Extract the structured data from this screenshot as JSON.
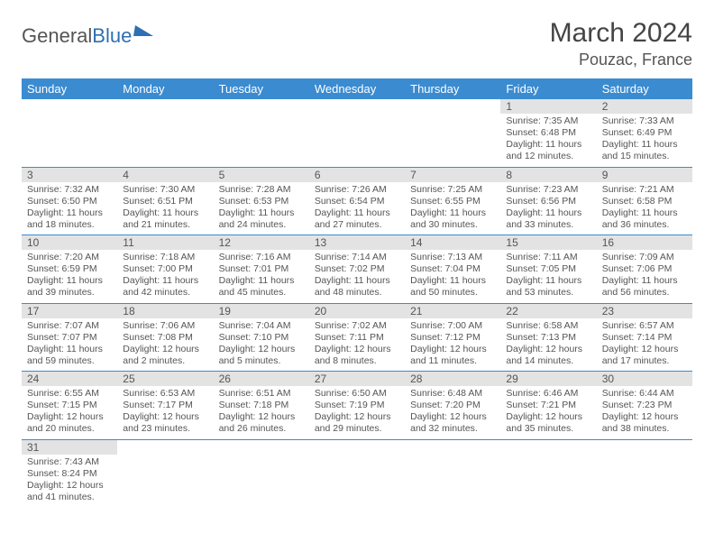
{
  "logo": {
    "word1": "General",
    "word2": "Blue"
  },
  "title": "March 2024",
  "location": "Pouzac, France",
  "colors": {
    "header_bg": "#3b8bd0",
    "header_text": "#ffffff",
    "daynum_bg": "#e3e3e3",
    "text": "#555555",
    "rule": "#3b8bd0",
    "logo_accent": "#2f6fb3"
  },
  "dow": [
    "Sunday",
    "Monday",
    "Tuesday",
    "Wednesday",
    "Thursday",
    "Friday",
    "Saturday"
  ],
  "weeks": [
    [
      null,
      null,
      null,
      null,
      null,
      {
        "n": "1",
        "sr": "7:35 AM",
        "ss": "6:48 PM",
        "dl": "11 hours and 12 minutes."
      },
      {
        "n": "2",
        "sr": "7:33 AM",
        "ss": "6:49 PM",
        "dl": "11 hours and 15 minutes."
      }
    ],
    [
      {
        "n": "3",
        "sr": "7:32 AM",
        "ss": "6:50 PM",
        "dl": "11 hours and 18 minutes."
      },
      {
        "n": "4",
        "sr": "7:30 AM",
        "ss": "6:51 PM",
        "dl": "11 hours and 21 minutes."
      },
      {
        "n": "5",
        "sr": "7:28 AM",
        "ss": "6:53 PM",
        "dl": "11 hours and 24 minutes."
      },
      {
        "n": "6",
        "sr": "7:26 AM",
        "ss": "6:54 PM",
        "dl": "11 hours and 27 minutes."
      },
      {
        "n": "7",
        "sr": "7:25 AM",
        "ss": "6:55 PM",
        "dl": "11 hours and 30 minutes."
      },
      {
        "n": "8",
        "sr": "7:23 AM",
        "ss": "6:56 PM",
        "dl": "11 hours and 33 minutes."
      },
      {
        "n": "9",
        "sr": "7:21 AM",
        "ss": "6:58 PM",
        "dl": "11 hours and 36 minutes."
      }
    ],
    [
      {
        "n": "10",
        "sr": "7:20 AM",
        "ss": "6:59 PM",
        "dl": "11 hours and 39 minutes."
      },
      {
        "n": "11",
        "sr": "7:18 AM",
        "ss": "7:00 PM",
        "dl": "11 hours and 42 minutes."
      },
      {
        "n": "12",
        "sr": "7:16 AM",
        "ss": "7:01 PM",
        "dl": "11 hours and 45 minutes."
      },
      {
        "n": "13",
        "sr": "7:14 AM",
        "ss": "7:02 PM",
        "dl": "11 hours and 48 minutes."
      },
      {
        "n": "14",
        "sr": "7:13 AM",
        "ss": "7:04 PM",
        "dl": "11 hours and 50 minutes."
      },
      {
        "n": "15",
        "sr": "7:11 AM",
        "ss": "7:05 PM",
        "dl": "11 hours and 53 minutes."
      },
      {
        "n": "16",
        "sr": "7:09 AM",
        "ss": "7:06 PM",
        "dl": "11 hours and 56 minutes."
      }
    ],
    [
      {
        "n": "17",
        "sr": "7:07 AM",
        "ss": "7:07 PM",
        "dl": "11 hours and 59 minutes."
      },
      {
        "n": "18",
        "sr": "7:06 AM",
        "ss": "7:08 PM",
        "dl": "12 hours and 2 minutes."
      },
      {
        "n": "19",
        "sr": "7:04 AM",
        "ss": "7:10 PM",
        "dl": "12 hours and 5 minutes."
      },
      {
        "n": "20",
        "sr": "7:02 AM",
        "ss": "7:11 PM",
        "dl": "12 hours and 8 minutes."
      },
      {
        "n": "21",
        "sr": "7:00 AM",
        "ss": "7:12 PM",
        "dl": "12 hours and 11 minutes."
      },
      {
        "n": "22",
        "sr": "6:58 AM",
        "ss": "7:13 PM",
        "dl": "12 hours and 14 minutes."
      },
      {
        "n": "23",
        "sr": "6:57 AM",
        "ss": "7:14 PM",
        "dl": "12 hours and 17 minutes."
      }
    ],
    [
      {
        "n": "24",
        "sr": "6:55 AM",
        "ss": "7:15 PM",
        "dl": "12 hours and 20 minutes."
      },
      {
        "n": "25",
        "sr": "6:53 AM",
        "ss": "7:17 PM",
        "dl": "12 hours and 23 minutes."
      },
      {
        "n": "26",
        "sr": "6:51 AM",
        "ss": "7:18 PM",
        "dl": "12 hours and 26 minutes."
      },
      {
        "n": "27",
        "sr": "6:50 AM",
        "ss": "7:19 PM",
        "dl": "12 hours and 29 minutes."
      },
      {
        "n": "28",
        "sr": "6:48 AM",
        "ss": "7:20 PM",
        "dl": "12 hours and 32 minutes."
      },
      {
        "n": "29",
        "sr": "6:46 AM",
        "ss": "7:21 PM",
        "dl": "12 hours and 35 minutes."
      },
      {
        "n": "30",
        "sr": "6:44 AM",
        "ss": "7:23 PM",
        "dl": "12 hours and 38 minutes."
      }
    ],
    [
      {
        "n": "31",
        "sr": "7:43 AM",
        "ss": "8:24 PM",
        "dl": "12 hours and 41 minutes."
      },
      null,
      null,
      null,
      null,
      null,
      null
    ]
  ],
  "labels": {
    "sunrise": "Sunrise:",
    "sunset": "Sunset:",
    "daylight": "Daylight:"
  }
}
